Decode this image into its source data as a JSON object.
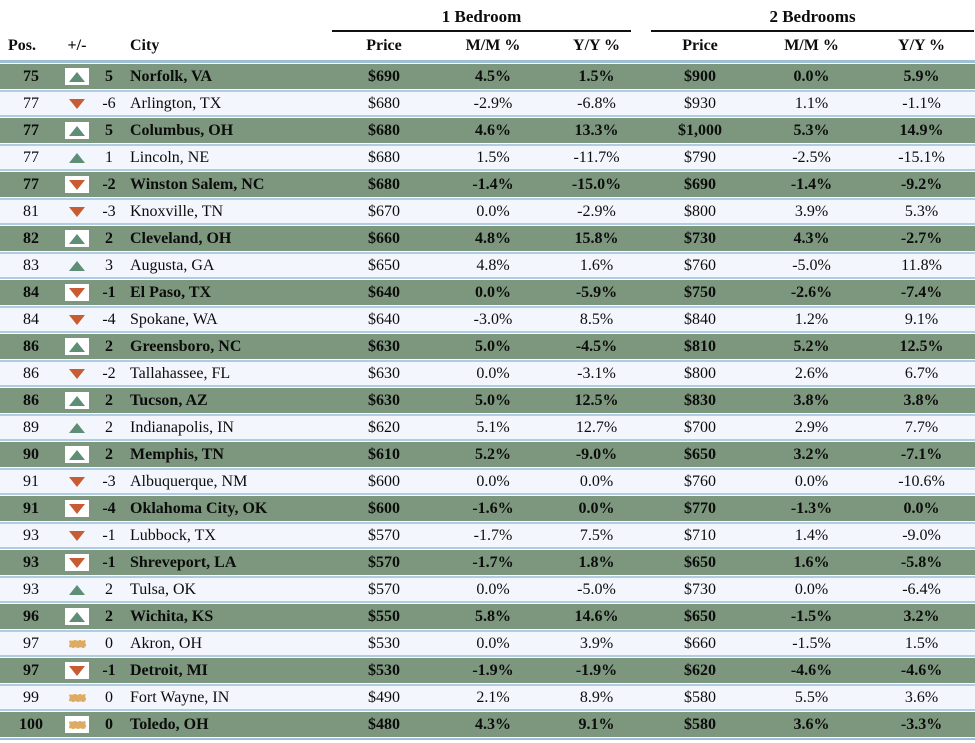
{
  "chart_data": {
    "type": "table",
    "title": "City rent ranking table",
    "group_headers": [
      {
        "label": "1 Bedroom"
      },
      {
        "label": "2 Bedrooms"
      }
    ],
    "columns": [
      "Pos.",
      "+/-",
      "City",
      "Price",
      "M/M %",
      "Y/Y %",
      "Price",
      "M/M %",
      "Y/Y %"
    ],
    "colors": {
      "highlight_row": "#7d977e",
      "light_row": "#f4f6fd",
      "row_border": "#afcde1",
      "up": "#5f8e76",
      "down": "#c95b33",
      "flat_fill": "#ddab63",
      "flat_border": "#f1d9ab",
      "header_underline": "#111111",
      "divider": "#9dc0d6",
      "text": "#0c0c0c"
    },
    "trend_icons": {
      "up": "up-triangle-icon",
      "down": "down-triangle-icon",
      "flat": "flat-dash-icon"
    },
    "rows": [
      {
        "pos": "75",
        "trend": "up",
        "change": "5",
        "city": "Norfolk, VA",
        "highlight": true,
        "br1_price": "$690",
        "br1_mm": "4.5%",
        "br1_yy": "1.5%",
        "br2_price": "$900",
        "br2_mm": "0.0%",
        "br2_yy": "5.9%"
      },
      {
        "pos": "77",
        "trend": "down",
        "change": "-6",
        "city": "Arlington, TX",
        "highlight": false,
        "br1_price": "$680",
        "br1_mm": "-2.9%",
        "br1_yy": "-6.8%",
        "br2_price": "$930",
        "br2_mm": "1.1%",
        "br2_yy": "-1.1%"
      },
      {
        "pos": "77",
        "trend": "up",
        "change": "5",
        "city": "Columbus, OH",
        "highlight": true,
        "br1_price": "$680",
        "br1_mm": "4.6%",
        "br1_yy": "13.3%",
        "br2_price": "$1,000",
        "br2_mm": "5.3%",
        "br2_yy": "14.9%"
      },
      {
        "pos": "77",
        "trend": "up",
        "change": "1",
        "city": "Lincoln, NE",
        "highlight": false,
        "br1_price": "$680",
        "br1_mm": "1.5%",
        "br1_yy": "-11.7%",
        "br2_price": "$790",
        "br2_mm": "-2.5%",
        "br2_yy": "-15.1%"
      },
      {
        "pos": "77",
        "trend": "down",
        "change": "-2",
        "city": "Winston Salem, NC",
        "highlight": true,
        "br1_price": "$680",
        "br1_mm": "-1.4%",
        "br1_yy": "-15.0%",
        "br2_price": "$690",
        "br2_mm": "-1.4%",
        "br2_yy": "-9.2%"
      },
      {
        "pos": "81",
        "trend": "down",
        "change": "-3",
        "city": "Knoxville, TN",
        "highlight": false,
        "br1_price": "$670",
        "br1_mm": "0.0%",
        "br1_yy": "-2.9%",
        "br2_price": "$800",
        "br2_mm": "3.9%",
        "br2_yy": "5.3%"
      },
      {
        "pos": "82",
        "trend": "up",
        "change": "2",
        "city": "Cleveland, OH",
        "highlight": true,
        "br1_price": "$660",
        "br1_mm": "4.8%",
        "br1_yy": "15.8%",
        "br2_price": "$730",
        "br2_mm": "4.3%",
        "br2_yy": "-2.7%"
      },
      {
        "pos": "83",
        "trend": "up",
        "change": "3",
        "city": "Augusta, GA",
        "highlight": false,
        "br1_price": "$650",
        "br1_mm": "4.8%",
        "br1_yy": "1.6%",
        "br2_price": "$760",
        "br2_mm": "-5.0%",
        "br2_yy": "11.8%"
      },
      {
        "pos": "84",
        "trend": "down",
        "change": "-1",
        "city": "El Paso, TX",
        "highlight": true,
        "br1_price": "$640",
        "br1_mm": "0.0%",
        "br1_yy": "-5.9%",
        "br2_price": "$750",
        "br2_mm": "-2.6%",
        "br2_yy": "-7.4%"
      },
      {
        "pos": "84",
        "trend": "down",
        "change": "-4",
        "city": "Spokane, WA",
        "highlight": false,
        "br1_price": "$640",
        "br1_mm": "-3.0%",
        "br1_yy": "8.5%",
        "br2_price": "$840",
        "br2_mm": "1.2%",
        "br2_yy": "9.1%"
      },
      {
        "pos": "86",
        "trend": "up",
        "change": "2",
        "city": "Greensboro, NC",
        "highlight": true,
        "br1_price": "$630",
        "br1_mm": "5.0%",
        "br1_yy": "-4.5%",
        "br2_price": "$810",
        "br2_mm": "5.2%",
        "br2_yy": "12.5%"
      },
      {
        "pos": "86",
        "trend": "down",
        "change": "-2",
        "city": "Tallahassee, FL",
        "highlight": false,
        "br1_price": "$630",
        "br1_mm": "0.0%",
        "br1_yy": "-3.1%",
        "br2_price": "$800",
        "br2_mm": "2.6%",
        "br2_yy": "6.7%"
      },
      {
        "pos": "86",
        "trend": "up",
        "change": "2",
        "city": "Tucson, AZ",
        "highlight": true,
        "br1_price": "$630",
        "br1_mm": "5.0%",
        "br1_yy": "12.5%",
        "br2_price": "$830",
        "br2_mm": "3.8%",
        "br2_yy": "3.8%"
      },
      {
        "pos": "89",
        "trend": "up",
        "change": "2",
        "city": "Indianapolis, IN",
        "highlight": false,
        "br1_price": "$620",
        "br1_mm": "5.1%",
        "br1_yy": "12.7%",
        "br2_price": "$700",
        "br2_mm": "2.9%",
        "br2_yy": "7.7%"
      },
      {
        "pos": "90",
        "trend": "up",
        "change": "2",
        "city": "Memphis, TN",
        "highlight": true,
        "br1_price": "$610",
        "br1_mm": "5.2%",
        "br1_yy": "-9.0%",
        "br2_price": "$650",
        "br2_mm": "3.2%",
        "br2_yy": "-7.1%"
      },
      {
        "pos": "91",
        "trend": "down",
        "change": "-3",
        "city": "Albuquerque, NM",
        "highlight": false,
        "br1_price": "$600",
        "br1_mm": "0.0%",
        "br1_yy": "0.0%",
        "br2_price": "$760",
        "br2_mm": "0.0%",
        "br2_yy": "-10.6%"
      },
      {
        "pos": "91",
        "trend": "down",
        "change": "-4",
        "city": "Oklahoma City, OK",
        "highlight": true,
        "br1_price": "$600",
        "br1_mm": "-1.6%",
        "br1_yy": "0.0%",
        "br2_price": "$770",
        "br2_mm": "-1.3%",
        "br2_yy": "0.0%"
      },
      {
        "pos": "93",
        "trend": "down",
        "change": "-1",
        "city": "Lubbock, TX",
        "highlight": false,
        "br1_price": "$570",
        "br1_mm": "-1.7%",
        "br1_yy": "7.5%",
        "br2_price": "$710",
        "br2_mm": "1.4%",
        "br2_yy": "-9.0%"
      },
      {
        "pos": "93",
        "trend": "down",
        "change": "-1",
        "city": "Shreveport, LA",
        "highlight": true,
        "br1_price": "$570",
        "br1_mm": "-1.7%",
        "br1_yy": "1.8%",
        "br2_price": "$650",
        "br2_mm": "1.6%",
        "br2_yy": "-5.8%"
      },
      {
        "pos": "93",
        "trend": "up",
        "change": "2",
        "city": "Tulsa, OK",
        "highlight": false,
        "br1_price": "$570",
        "br1_mm": "0.0%",
        "br1_yy": "-5.0%",
        "br2_price": "$730",
        "br2_mm": "0.0%",
        "br2_yy": "-6.4%"
      },
      {
        "pos": "96",
        "trend": "up",
        "change": "2",
        "city": "Wichita, KS",
        "highlight": true,
        "br1_price": "$550",
        "br1_mm": "5.8%",
        "br1_yy": "14.6%",
        "br2_price": "$650",
        "br2_mm": "-1.5%",
        "br2_yy": "3.2%"
      },
      {
        "pos": "97",
        "trend": "flat",
        "change": "0",
        "city": "Akron, OH",
        "highlight": false,
        "br1_price": "$530",
        "br1_mm": "0.0%",
        "br1_yy": "3.9%",
        "br2_price": "$660",
        "br2_mm": "-1.5%",
        "br2_yy": "1.5%"
      },
      {
        "pos": "97",
        "trend": "down",
        "change": "-1",
        "city": "Detroit, MI",
        "highlight": true,
        "br1_price": "$530",
        "br1_mm": "-1.9%",
        "br1_yy": "-1.9%",
        "br2_price": "$620",
        "br2_mm": "-4.6%",
        "br2_yy": "-4.6%"
      },
      {
        "pos": "99",
        "trend": "flat",
        "change": "0",
        "city": "Fort Wayne, IN",
        "highlight": false,
        "br1_price": "$490",
        "br1_mm": "2.1%",
        "br1_yy": "8.9%",
        "br2_price": "$580",
        "br2_mm": "5.5%",
        "br2_yy": "3.6%"
      },
      {
        "pos": "100",
        "trend": "flat",
        "change": "0",
        "city": "Toledo, OH",
        "highlight": true,
        "br1_price": "$480",
        "br1_mm": "4.3%",
        "br1_yy": "9.1%",
        "br2_price": "$580",
        "br2_mm": "3.6%",
        "br2_yy": "-3.3%"
      }
    ]
  }
}
